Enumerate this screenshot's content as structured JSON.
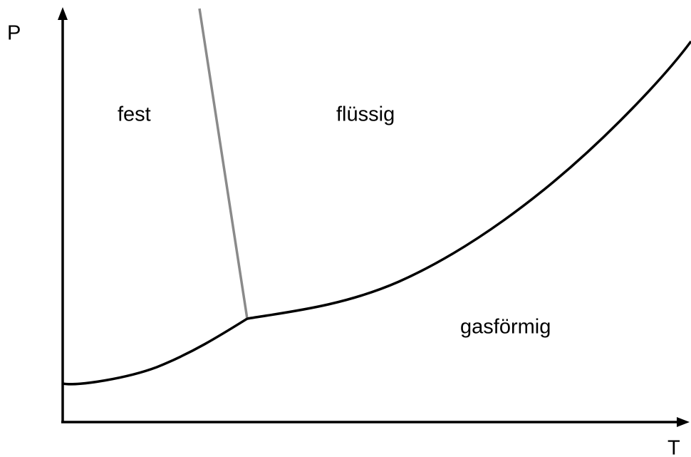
{
  "axes": {
    "y_label": "P",
    "x_label": "T"
  },
  "regions": {
    "solid": "fest",
    "liquid": "flüssig",
    "gas": "gasförmig"
  }
}
